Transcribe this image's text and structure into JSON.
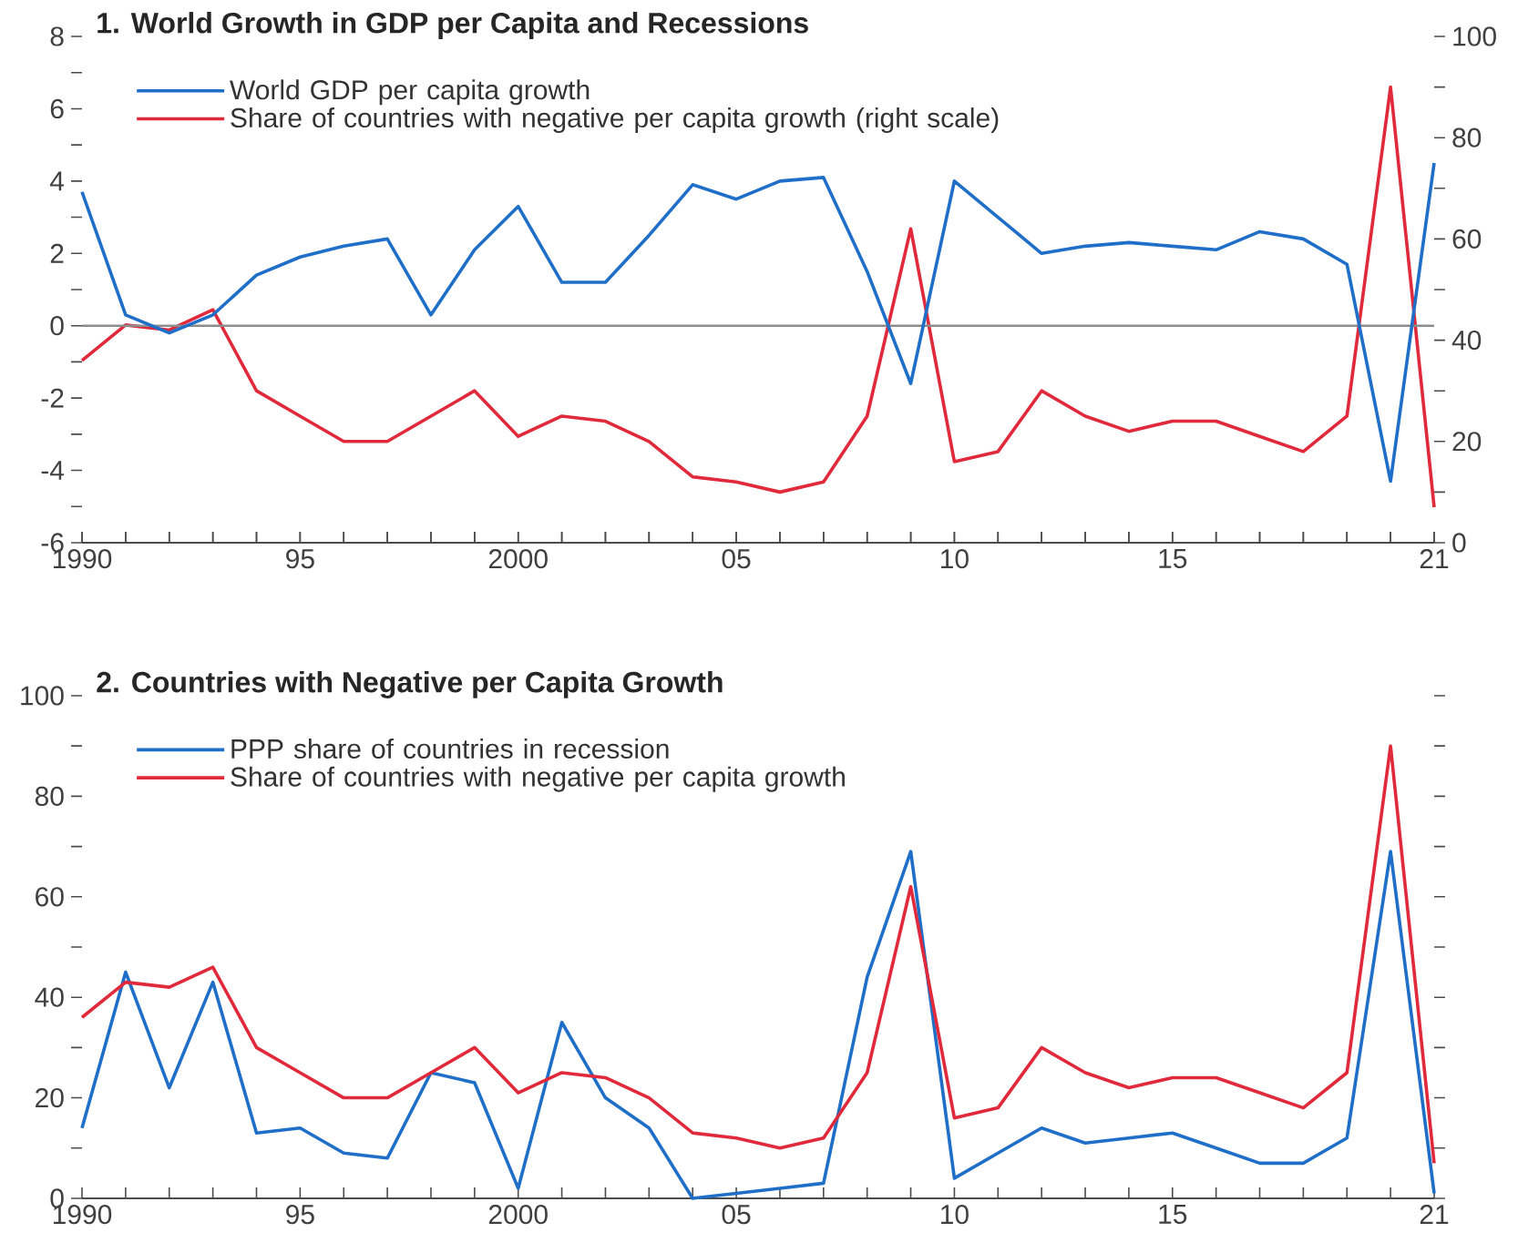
{
  "chart_data": [
    {
      "type": "line",
      "title": "1. World Growth in GDP per Capita and Recessions",
      "x": [
        1990,
        1991,
        1992,
        1993,
        1994,
        1995,
        1996,
        1997,
        1998,
        1999,
        2000,
        2001,
        2002,
        2003,
        2004,
        2005,
        2006,
        2007,
        2008,
        2009,
        2010,
        2011,
        2012,
        2013,
        2014,
        2015,
        2016,
        2017,
        2018,
        2019,
        2020,
        2021
      ],
      "xlim": [
        1990,
        2021
      ],
      "xticks": [
        1990,
        {
          "value": 1991,
          "label": null
        },
        {
          "value": 1992,
          "label": null
        },
        {
          "value": 1993,
          "label": null
        },
        {
          "value": 1994,
          "label": null
        },
        {
          "value": 1995,
          "label": "95"
        },
        {
          "value": 1996,
          "label": null
        },
        {
          "value": 1997,
          "label": null
        },
        {
          "value": 1998,
          "label": null
        },
        {
          "value": 1999,
          "label": null
        },
        2000,
        {
          "value": 2001,
          "label": null
        },
        {
          "value": 2002,
          "label": null
        },
        {
          "value": 2003,
          "label": null
        },
        {
          "value": 2004,
          "label": null
        },
        {
          "value": 2005,
          "label": "05"
        },
        {
          "value": 2006,
          "label": null
        },
        {
          "value": 2007,
          "label": null
        },
        {
          "value": 2008,
          "label": null
        },
        {
          "value": 2009,
          "label": null
        },
        {
          "value": 2010,
          "label": "10"
        },
        {
          "value": 2011,
          "label": null
        },
        {
          "value": 2012,
          "label": null
        },
        {
          "value": 2013,
          "label": null
        },
        {
          "value": 2014,
          "label": null
        },
        {
          "value": 2015,
          "label": "15"
        },
        {
          "value": 2016,
          "label": null
        },
        {
          "value": 2017,
          "label": null
        },
        {
          "value": 2018,
          "label": null
        },
        {
          "value": 2019,
          "label": null
        },
        {
          "value": 2020,
          "label": null
        },
        {
          "value": 2021,
          "label": "21"
        }
      ],
      "ylim": [
        -6,
        8
      ],
      "yticks": [
        -6,
        {
          "value": -5,
          "label": null
        },
        -4,
        {
          "value": -3,
          "label": null
        },
        -2,
        {
          "value": -1,
          "label": null
        },
        0,
        {
          "value": 1,
          "label": null
        },
        2,
        {
          "value": 3,
          "label": null
        },
        4,
        {
          "value": 5,
          "label": null
        },
        6,
        {
          "value": 7,
          "label": null
        },
        8
      ],
      "y2lim": [
        0,
        100
      ],
      "y2ticks": [
        0,
        {
          "value": 10,
          "label": null
        },
        20,
        {
          "value": 30,
          "label": null
        },
        40,
        {
          "value": 50,
          "label": null
        },
        60,
        {
          "value": 70,
          "label": null
        },
        80,
        {
          "value": 90,
          "label": null
        },
        100
      ],
      "ref_lines": [
        {
          "axis": "y",
          "value": 0,
          "color": "#8c8c8c"
        }
      ],
      "legend": "top left",
      "series": [
        {
          "name": "World GDP per capita growth",
          "color": "#1f6fc9",
          "values": [
            3.7,
            0.3,
            -0.2,
            0.3,
            1.4,
            1.9,
            2.2,
            2.4,
            0.3,
            2.1,
            3.3,
            1.2,
            1.2,
            2.5,
            3.9,
            3.5,
            4.0,
            4.1,
            1.5,
            -1.6,
            4.0,
            3.0,
            2.0,
            2.2,
            2.3,
            2.2,
            2.1,
            2.6,
            2.4,
            1.7,
            -4.3,
            4.5
          ]
        },
        {
          "name": "Share of countries with negative per capita growth (right scale)",
          "color": "#e0293a",
          "axis": "y2",
          "values": [
            36,
            43,
            42,
            46,
            30,
            25,
            20,
            20,
            25,
            30,
            21,
            25,
            24,
            20,
            13,
            12,
            10,
            12,
            25,
            62,
            16,
            18,
            30,
            25,
            22,
            24,
            24,
            21,
            18,
            25,
            90,
            7
          ]
        }
      ]
    },
    {
      "type": "line",
      "title": "2. Countries with Negative per Capita Growth",
      "x": [
        1990,
        1991,
        1992,
        1993,
        1994,
        1995,
        1996,
        1997,
        1998,
        1999,
        2000,
        2001,
        2002,
        2003,
        2004,
        2005,
        2006,
        2007,
        2008,
        2009,
        2010,
        2011,
        2012,
        2013,
        2014,
        2015,
        2016,
        2017,
        2018,
        2019,
        2020,
        2021
      ],
      "xlim": [
        1990,
        2021
      ],
      "xticks": [
        1990,
        {
          "value": 1991,
          "label": null
        },
        {
          "value": 1992,
          "label": null
        },
        {
          "value": 1993,
          "label": null
        },
        {
          "value": 1994,
          "label": null
        },
        {
          "value": 1995,
          "label": "95"
        },
        {
          "value": 1996,
          "label": null
        },
        {
          "value": 1997,
          "label": null
        },
        {
          "value": 1998,
          "label": null
        },
        {
          "value": 1999,
          "label": null
        },
        2000,
        {
          "value": 2001,
          "label": null
        },
        {
          "value": 2002,
          "label": null
        },
        {
          "value": 2003,
          "label": null
        },
        {
          "value": 2004,
          "label": null
        },
        {
          "value": 2005,
          "label": "05"
        },
        {
          "value": 2006,
          "label": null
        },
        {
          "value": 2007,
          "label": null
        },
        {
          "value": 2008,
          "label": null
        },
        {
          "value": 2009,
          "label": null
        },
        {
          "value": 2010,
          "label": "10"
        },
        {
          "value": 2011,
          "label": null
        },
        {
          "value": 2012,
          "label": null
        },
        {
          "value": 2013,
          "label": null
        },
        {
          "value": 2014,
          "label": null
        },
        {
          "value": 2015,
          "label": "15"
        },
        {
          "value": 2016,
          "label": null
        },
        {
          "value": 2017,
          "label": null
        },
        {
          "value": 2018,
          "label": null
        },
        {
          "value": 2019,
          "label": null
        },
        {
          "value": 2020,
          "label": null
        },
        {
          "value": 2021,
          "label": "21"
        }
      ],
      "ylim": [
        0,
        100
      ],
      "yticks": [
        0,
        {
          "value": 10,
          "label": null
        },
        20,
        {
          "value": 30,
          "label": null
        },
        40,
        {
          "value": 50,
          "label": null
        },
        60,
        {
          "value": 70,
          "label": null
        },
        80,
        {
          "value": 90,
          "label": null
        },
        100
      ],
      "legend": "top left",
      "series": [
        {
          "name": "PPP share of countries in recession",
          "color": "#1f6fc9",
          "values": [
            14,
            45,
            22,
            43,
            13,
            14,
            9,
            8,
            25,
            23,
            2,
            35,
            20,
            14,
            0,
            1,
            2,
            3,
            44,
            69,
            4,
            9,
            14,
            11,
            12,
            13,
            10,
            7,
            7,
            12,
            69,
            1
          ]
        },
        {
          "name": "Share of countries with negative per capita growth",
          "color": "#e0293a",
          "values": [
            36,
            43,
            42,
            46,
            30,
            25,
            20,
            20,
            25,
            30,
            21,
            25,
            24,
            20,
            13,
            12,
            10,
            12,
            25,
            62,
            16,
            18,
            30,
            25,
            22,
            24,
            24,
            21,
            18,
            25,
            90,
            7
          ]
        }
      ]
    }
  ]
}
